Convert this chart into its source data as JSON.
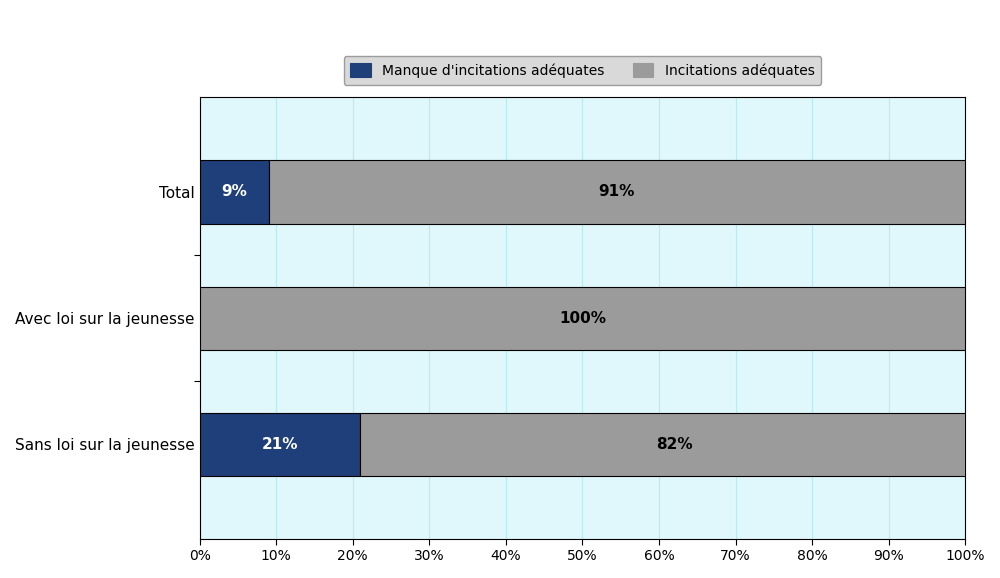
{
  "categories": [
    "Total",
    "Avec loi sur la jeunesse",
    "Sans loi sur la jeunesse"
  ],
  "manque_values": [
    9,
    0,
    21
  ],
  "incitations_values": [
    91,
    100,
    82
  ],
  "manque_labels": [
    "9%",
    "",
    "21%"
  ],
  "incitations_labels": [
    "91%",
    "100%",
    "82%"
  ],
  "color_manque": "#1F3F7A",
  "color_incitations": "#9B9B9B",
  "strip_color": "#E0F7FB",
  "legend_label_manque": "Manque d'incitations adéquates",
  "legend_label_incitations": "Incitations adéquates",
  "xtick_labels": [
    "0%",
    "10%",
    "20%",
    "30%",
    "40%",
    "50%",
    "60%",
    "70%",
    "80%",
    "90%",
    "100%"
  ],
  "xtick_values": [
    0,
    10,
    20,
    30,
    40,
    50,
    60,
    70,
    80,
    90,
    100
  ],
  "figure_bg": "#ffffff",
  "legend_bg": "#D0D0D0",
  "bar_edge_color": "#000000",
  "grid_color": "#B8EAF0",
  "text_color": "#000000",
  "fontsize_labels": 11,
  "fontsize_ticks": 10,
  "fontsize_bar_text": 11
}
